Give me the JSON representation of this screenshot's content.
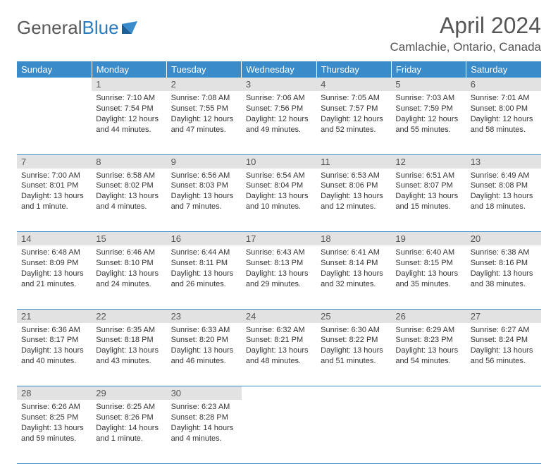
{
  "brand": {
    "part1": "General",
    "part2": "Blue"
  },
  "title": "April 2024",
  "location": "Camlachie, Ontario, Canada",
  "colors": {
    "header_bg": "#3a8bc9",
    "header_text": "#ffffff",
    "daynum_bg": "#e2e2e2",
    "body_text": "#333333",
    "rule": "#3a8bc9"
  },
  "weekdays": [
    "Sunday",
    "Monday",
    "Tuesday",
    "Wednesday",
    "Thursday",
    "Friday",
    "Saturday"
  ],
  "weeks": [
    [
      null,
      {
        "n": "1",
        "sr": "Sunrise: 7:10 AM",
        "ss": "Sunset: 7:54 PM",
        "d1": "Daylight: 12 hours",
        "d2": "and 44 minutes."
      },
      {
        "n": "2",
        "sr": "Sunrise: 7:08 AM",
        "ss": "Sunset: 7:55 PM",
        "d1": "Daylight: 12 hours",
        "d2": "and 47 minutes."
      },
      {
        "n": "3",
        "sr": "Sunrise: 7:06 AM",
        "ss": "Sunset: 7:56 PM",
        "d1": "Daylight: 12 hours",
        "d2": "and 49 minutes."
      },
      {
        "n": "4",
        "sr": "Sunrise: 7:05 AM",
        "ss": "Sunset: 7:57 PM",
        "d1": "Daylight: 12 hours",
        "d2": "and 52 minutes."
      },
      {
        "n": "5",
        "sr": "Sunrise: 7:03 AM",
        "ss": "Sunset: 7:59 PM",
        "d1": "Daylight: 12 hours",
        "d2": "and 55 minutes."
      },
      {
        "n": "6",
        "sr": "Sunrise: 7:01 AM",
        "ss": "Sunset: 8:00 PM",
        "d1": "Daylight: 12 hours",
        "d2": "and 58 minutes."
      }
    ],
    [
      {
        "n": "7",
        "sr": "Sunrise: 7:00 AM",
        "ss": "Sunset: 8:01 PM",
        "d1": "Daylight: 13 hours",
        "d2": "and 1 minute."
      },
      {
        "n": "8",
        "sr": "Sunrise: 6:58 AM",
        "ss": "Sunset: 8:02 PM",
        "d1": "Daylight: 13 hours",
        "d2": "and 4 minutes."
      },
      {
        "n": "9",
        "sr": "Sunrise: 6:56 AM",
        "ss": "Sunset: 8:03 PM",
        "d1": "Daylight: 13 hours",
        "d2": "and 7 minutes."
      },
      {
        "n": "10",
        "sr": "Sunrise: 6:54 AM",
        "ss": "Sunset: 8:04 PM",
        "d1": "Daylight: 13 hours",
        "d2": "and 10 minutes."
      },
      {
        "n": "11",
        "sr": "Sunrise: 6:53 AM",
        "ss": "Sunset: 8:06 PM",
        "d1": "Daylight: 13 hours",
        "d2": "and 12 minutes."
      },
      {
        "n": "12",
        "sr": "Sunrise: 6:51 AM",
        "ss": "Sunset: 8:07 PM",
        "d1": "Daylight: 13 hours",
        "d2": "and 15 minutes."
      },
      {
        "n": "13",
        "sr": "Sunrise: 6:49 AM",
        "ss": "Sunset: 8:08 PM",
        "d1": "Daylight: 13 hours",
        "d2": "and 18 minutes."
      }
    ],
    [
      {
        "n": "14",
        "sr": "Sunrise: 6:48 AM",
        "ss": "Sunset: 8:09 PM",
        "d1": "Daylight: 13 hours",
        "d2": "and 21 minutes."
      },
      {
        "n": "15",
        "sr": "Sunrise: 6:46 AM",
        "ss": "Sunset: 8:10 PM",
        "d1": "Daylight: 13 hours",
        "d2": "and 24 minutes."
      },
      {
        "n": "16",
        "sr": "Sunrise: 6:44 AM",
        "ss": "Sunset: 8:11 PM",
        "d1": "Daylight: 13 hours",
        "d2": "and 26 minutes."
      },
      {
        "n": "17",
        "sr": "Sunrise: 6:43 AM",
        "ss": "Sunset: 8:13 PM",
        "d1": "Daylight: 13 hours",
        "d2": "and 29 minutes."
      },
      {
        "n": "18",
        "sr": "Sunrise: 6:41 AM",
        "ss": "Sunset: 8:14 PM",
        "d1": "Daylight: 13 hours",
        "d2": "and 32 minutes."
      },
      {
        "n": "19",
        "sr": "Sunrise: 6:40 AM",
        "ss": "Sunset: 8:15 PM",
        "d1": "Daylight: 13 hours",
        "d2": "and 35 minutes."
      },
      {
        "n": "20",
        "sr": "Sunrise: 6:38 AM",
        "ss": "Sunset: 8:16 PM",
        "d1": "Daylight: 13 hours",
        "d2": "and 38 minutes."
      }
    ],
    [
      {
        "n": "21",
        "sr": "Sunrise: 6:36 AM",
        "ss": "Sunset: 8:17 PM",
        "d1": "Daylight: 13 hours",
        "d2": "and 40 minutes."
      },
      {
        "n": "22",
        "sr": "Sunrise: 6:35 AM",
        "ss": "Sunset: 8:18 PM",
        "d1": "Daylight: 13 hours",
        "d2": "and 43 minutes."
      },
      {
        "n": "23",
        "sr": "Sunrise: 6:33 AM",
        "ss": "Sunset: 8:20 PM",
        "d1": "Daylight: 13 hours",
        "d2": "and 46 minutes."
      },
      {
        "n": "24",
        "sr": "Sunrise: 6:32 AM",
        "ss": "Sunset: 8:21 PM",
        "d1": "Daylight: 13 hours",
        "d2": "and 48 minutes."
      },
      {
        "n": "25",
        "sr": "Sunrise: 6:30 AM",
        "ss": "Sunset: 8:22 PM",
        "d1": "Daylight: 13 hours",
        "d2": "and 51 minutes."
      },
      {
        "n": "26",
        "sr": "Sunrise: 6:29 AM",
        "ss": "Sunset: 8:23 PM",
        "d1": "Daylight: 13 hours",
        "d2": "and 54 minutes."
      },
      {
        "n": "27",
        "sr": "Sunrise: 6:27 AM",
        "ss": "Sunset: 8:24 PM",
        "d1": "Daylight: 13 hours",
        "d2": "and 56 minutes."
      }
    ],
    [
      {
        "n": "28",
        "sr": "Sunrise: 6:26 AM",
        "ss": "Sunset: 8:25 PM",
        "d1": "Daylight: 13 hours",
        "d2": "and 59 minutes."
      },
      {
        "n": "29",
        "sr": "Sunrise: 6:25 AM",
        "ss": "Sunset: 8:26 PM",
        "d1": "Daylight: 14 hours",
        "d2": "and 1 minute."
      },
      {
        "n": "30",
        "sr": "Sunrise: 6:23 AM",
        "ss": "Sunset: 8:28 PM",
        "d1": "Daylight: 14 hours",
        "d2": "and 4 minutes."
      },
      null,
      null,
      null,
      null
    ]
  ]
}
